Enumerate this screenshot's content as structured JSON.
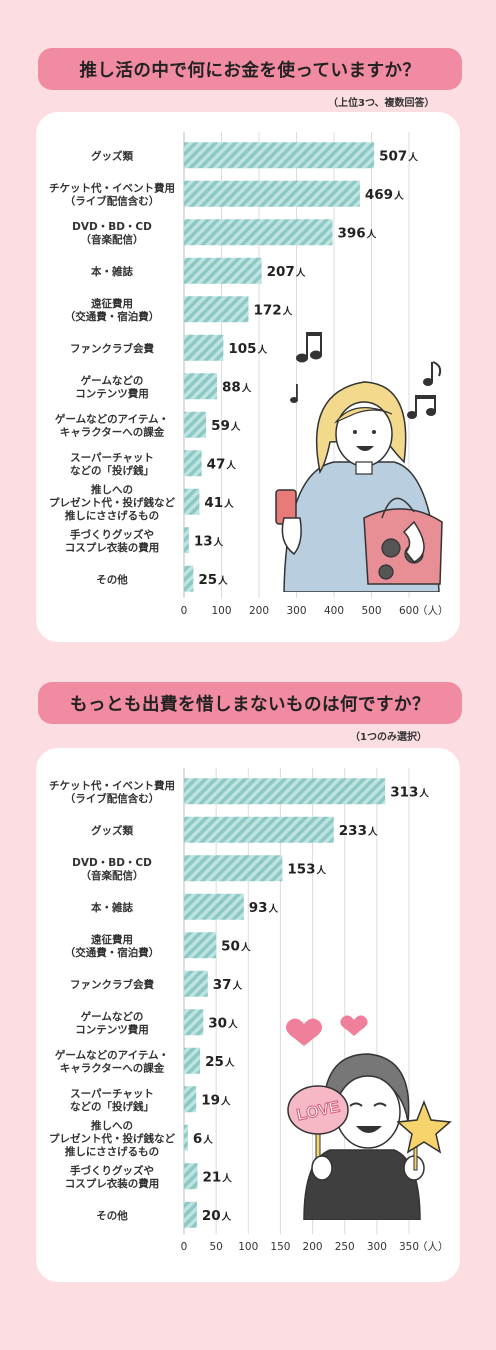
{
  "page": {
    "q1": {
      "title": "推し活の中で何にお金を使っていますか？",
      "note": "（上位3つ、複数回答）"
    },
    "q2": {
      "title": "もっとも出費を惜しまないものは何ですか？",
      "note": "（1つのみ選択）"
    },
    "illustration2": {
      "badge_text": "LOVE"
    }
  },
  "chart_data": [
    {
      "type": "bar",
      "orientation": "horizontal",
      "title": "推し活の中で何にお金を使っていますか？",
      "subtitle": "（上位3つ、複数回答）",
      "unit": "人",
      "categories": [
        [
          "グッズ類"
        ],
        [
          "チケット代・イベント費用",
          "（ライブ配信含む）"
        ],
        [
          "DVD・BD・CD",
          "（音楽配信）"
        ],
        [
          "本・雑誌"
        ],
        [
          "遠征費用",
          "（交通費・宿泊費）"
        ],
        [
          "ファンクラブ会費"
        ],
        [
          "ゲームなどの",
          "コンテンツ費用"
        ],
        [
          "ゲームなどのアイテム・",
          "キャラクターへの課金"
        ],
        [
          "スーパーチャット",
          "などの「投げ銭」"
        ],
        [
          "推しへの",
          "プレゼント代・投げ銭など",
          "推しにささげるもの"
        ],
        [
          "手づくりグッズや",
          "コスプレ衣装の費用"
        ],
        [
          "その他"
        ]
      ],
      "values": [
        507,
        469,
        396,
        207,
        172,
        105,
        88,
        59,
        47,
        41,
        13,
        25
      ],
      "xlim": [
        0,
        600
      ],
      "xticks": [
        "0",
        "100",
        "200",
        "300",
        "400",
        "500",
        "600"
      ],
      "xunit_label": "（人）",
      "grid": true,
      "bar_color": "#9fd3cf"
    },
    {
      "type": "bar",
      "orientation": "horizontal",
      "title": "もっとも出費を惜しまないものは何ですか？",
      "subtitle": "（1つのみ選択）",
      "unit": "人",
      "categories": [
        [
          "チケット代・イベント費用",
          "（ライブ配信含む）"
        ],
        [
          "グッズ類"
        ],
        [
          "DVD・BD・CD",
          "（音楽配信）"
        ],
        [
          "本・雑誌"
        ],
        [
          "遠征費用",
          "（交通費・宿泊費）"
        ],
        [
          "ファンクラブ会費"
        ],
        [
          "ゲームなどの",
          "コンテンツ費用"
        ],
        [
          "ゲームなどのアイテム・",
          "キャラクターへの課金"
        ],
        [
          "スーパーチャット",
          "などの「投げ銭」"
        ],
        [
          "推しへの",
          "プレゼント代・投げ銭など",
          "推しにささげるもの"
        ],
        [
          "手づくりグッズや",
          "コスプレ衣装の費用"
        ],
        [
          "その他"
        ]
      ],
      "values": [
        313,
        233,
        153,
        93,
        50,
        37,
        30,
        25,
        19,
        6,
        21,
        20
      ],
      "xlim": [
        0,
        350
      ],
      "xticks": [
        "0",
        "50",
        "100",
        "150",
        "200",
        "250",
        "300",
        "350"
      ],
      "xunit_label": "（人）",
      "grid": true,
      "bar_color": "#9fd3cf"
    }
  ]
}
